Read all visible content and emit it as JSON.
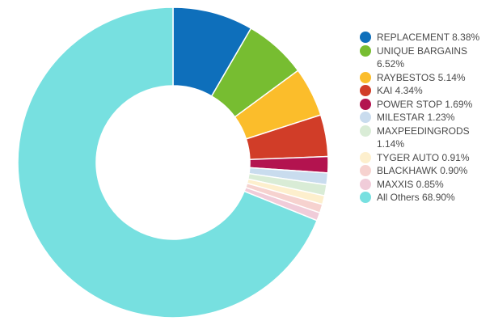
{
  "chart_data": {
    "type": "pie",
    "variant": "donut",
    "title": "",
    "legend_position": "right",
    "slices": [
      {
        "name": "REPLACEMENT",
        "value": 8.38,
        "label": "REPLACEMENT 8.38%",
        "color": "#0e6fbb"
      },
      {
        "name": "UNIQUE BARGAINS",
        "value": 6.52,
        "label": "UNIQUE BARGAINS 6.52%",
        "color": "#77bd31"
      },
      {
        "name": "RAYBESTOS",
        "value": 5.14,
        "label": "RAYBESTOS 5.14%",
        "color": "#fbbd2b"
      },
      {
        "name": "KAI",
        "value": 4.34,
        "label": "KAI 4.34%",
        "color": "#d13d28"
      },
      {
        "name": "POWER STOP",
        "value": 1.69,
        "label": "POWER STOP 1.69%",
        "color": "#b3134f"
      },
      {
        "name": "MILESTAR",
        "value": 1.23,
        "label": "MILESTAR 1.23%",
        "color": "#c9dcee"
      },
      {
        "name": "MAXPEEDINGRODS",
        "value": 1.14,
        "label": "MAXPEEDINGRODS 1.14%",
        "color": "#d9ecd6"
      },
      {
        "name": "TYGER AUTO",
        "value": 0.91,
        "label": "TYGER AUTO 0.91%",
        "color": "#fdefcd"
      },
      {
        "name": "BLACKHAWK",
        "value": 0.9,
        "label": "BLACKHAWK 0.90%",
        "color": "#f6d2cf"
      },
      {
        "name": "MAXXIS",
        "value": 0.85,
        "label": "MAXXIS 0.85%",
        "color": "#f0ccd9"
      },
      {
        "name": "All Others",
        "value": 68.9,
        "label": "All Others 68.90%",
        "color": "#77e0e0"
      }
    ]
  }
}
